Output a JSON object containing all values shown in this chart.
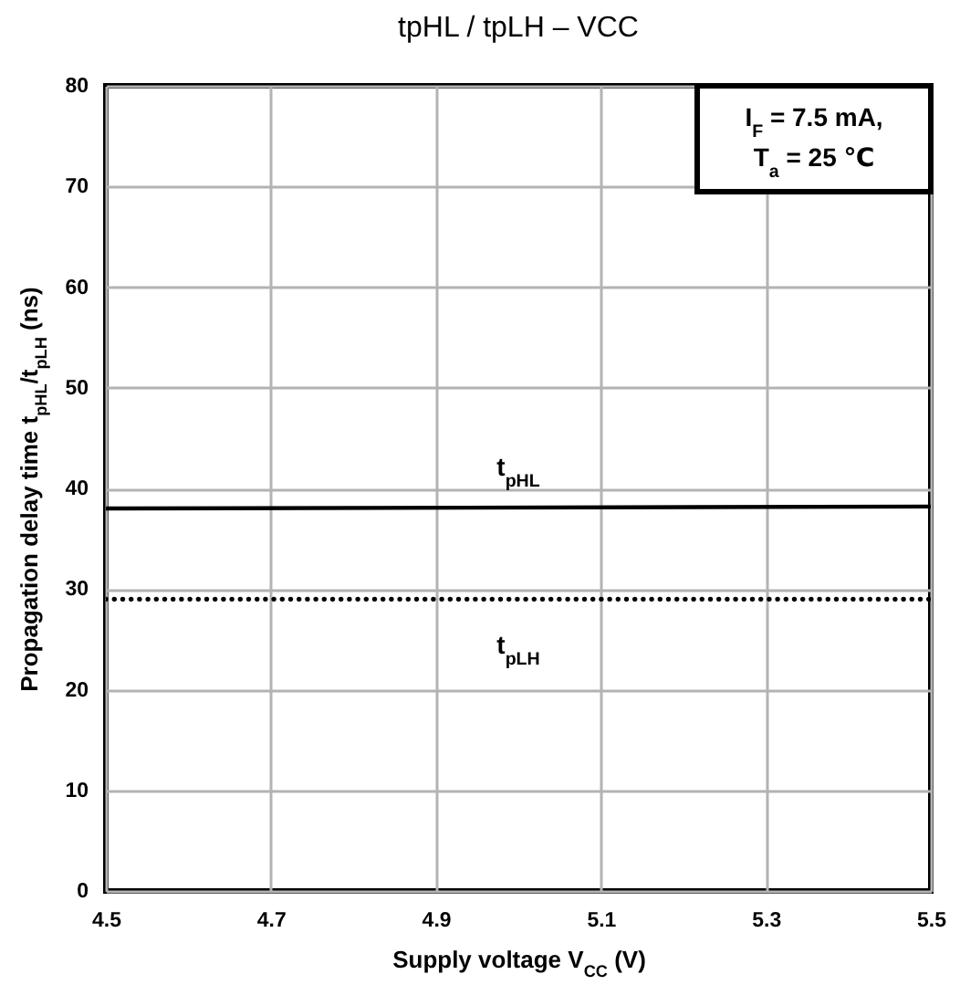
{
  "chart_data": {
    "type": "line",
    "title": "tpHL / tpLH – VCC",
    "xlabel": "Supply voltage   V$_{CC}$   (V)",
    "ylabel": "Propagation delay time  t$_{pHL}$/t$_{pLH}$  (ns)",
    "x": [
      4.5,
      5.5
    ],
    "series": [
      {
        "name": "t$_{pHL}$",
        "color": "#000000",
        "line_style": "solid",
        "values": [
          38,
          38.2
        ]
      },
      {
        "name": "t$_{pLH}$",
        "color": "#000000",
        "line_style": "dotted",
        "values": [
          29,
          29
        ]
      }
    ],
    "xlim": [
      4.5,
      5.5
    ],
    "xticks": [
      4.5,
      4.7,
      4.9,
      5.1,
      5.3,
      5.5
    ],
    "ylim": [
      0,
      80
    ],
    "yticks": [
      0,
      10,
      20,
      30,
      40,
      50,
      60,
      70,
      80
    ],
    "grid": true,
    "legend": false,
    "marker": "none",
    "annotations": [
      "I$_{F}$ = 7.5 mA,",
      "T$_{a}$ = 25 ℃"
    ]
  }
}
